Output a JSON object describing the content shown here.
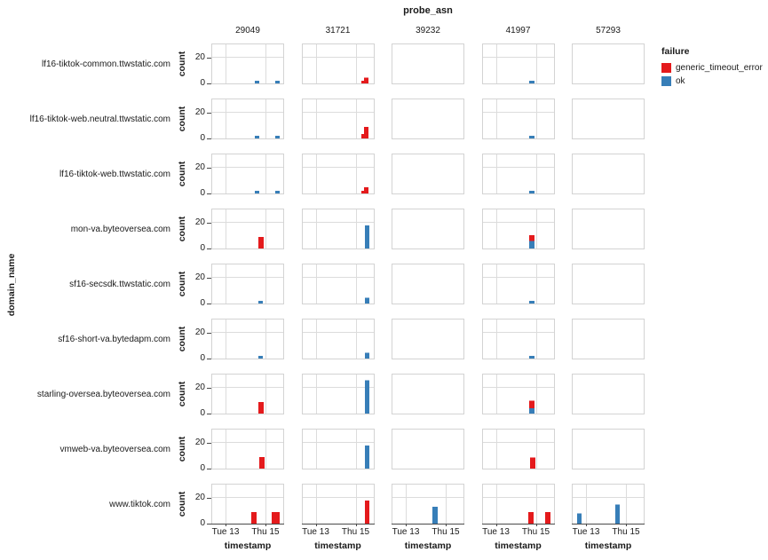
{
  "title": "probe_asn",
  "axes": {
    "row_title": "domain_name",
    "x_title": "timestamp",
    "y_title": "count",
    "y_ticks": [
      "20",
      "0"
    ],
    "x_ticks": [
      "Tue 13",
      "Thu 15"
    ]
  },
  "legend": {
    "title": "failure",
    "items": [
      {
        "label": "generic_timeout_error",
        "color": "#e41a1c"
      },
      {
        "label": "ok",
        "color": "#377eb8"
      }
    ]
  },
  "chart_data": {
    "type": "bar",
    "title": "probe_asn",
    "xlabel": "timestamp",
    "ylabel": "count",
    "facet_columns": [
      "29049",
      "31721",
      "39232",
      "41997",
      "57293"
    ],
    "facet_rows": [
      "lf16-tiktok-common.ttwstatic.com",
      "lf16-tiktok-web.neutral.ttwstatic.com",
      "lf16-tiktok-web.ttwstatic.com",
      "mon-va.byteoversea.com",
      "sf16-secsdk.ttwstatic.com",
      "sf16-short-va.bytedapm.com",
      "starling-oversea.byteoversea.com",
      "vmweb-va.byteoversea.com",
      "www.tiktok.com"
    ],
    "ylim": [
      0,
      30
    ],
    "y_gridline": 20,
    "x_tick_positions": [
      0.1875,
      0.7563
    ],
    "series_colors": {
      "generic_timeout_error": "#e41a1c",
      "ok": "#377eb8"
    },
    "panels": [
      {
        "r": 0,
        "c": 0,
        "grid": true,
        "bars": [
          {
            "x": 0.597,
            "w": 0.068,
            "stack": [
              {
                "failure": "ok",
                "count": 2
              }
            ]
          },
          {
            "x": 0.8875,
            "w": 0.0625,
            "stack": [
              {
                "failure": "ok",
                "count": 2
              }
            ]
          }
        ]
      },
      {
        "r": 0,
        "c": 1,
        "grid": true,
        "bars": [
          {
            "x": 0.82,
            "w": 0.042,
            "stack": [
              {
                "failure": "generic_timeout_error",
                "count": 2
              }
            ]
          },
          {
            "x": 0.862,
            "w": 0.062,
            "stack": [
              {
                "failure": "generic_timeout_error",
                "count": 4.5
              }
            ]
          }
        ]
      },
      {
        "r": 0,
        "c": 2,
        "grid": false,
        "bars": []
      },
      {
        "r": 0,
        "c": 3,
        "grid": true,
        "bars": [
          {
            "x": 0.655,
            "w": 0.07,
            "stack": [
              {
                "failure": "ok",
                "count": 2
              }
            ]
          }
        ]
      },
      {
        "r": 0,
        "c": 4,
        "grid": false,
        "bars": []
      },
      {
        "r": 1,
        "c": 0,
        "grid": true,
        "bars": [
          {
            "x": 0.597,
            "w": 0.068,
            "stack": [
              {
                "failure": "ok",
                "count": 2
              }
            ]
          },
          {
            "x": 0.8875,
            "w": 0.0625,
            "stack": [
              {
                "failure": "ok",
                "count": 2
              }
            ]
          }
        ]
      },
      {
        "r": 1,
        "c": 1,
        "grid": true,
        "bars": [
          {
            "x": 0.82,
            "w": 0.042,
            "stack": [
              {
                "failure": "generic_timeout_error",
                "count": 3.5
              }
            ]
          },
          {
            "x": 0.862,
            "w": 0.062,
            "stack": [
              {
                "failure": "generic_timeout_error",
                "count": 9
              }
            ]
          }
        ]
      },
      {
        "r": 1,
        "c": 2,
        "grid": false,
        "bars": []
      },
      {
        "r": 1,
        "c": 3,
        "grid": true,
        "bars": [
          {
            "x": 0.655,
            "w": 0.07,
            "stack": [
              {
                "failure": "ok",
                "count": 2
              }
            ]
          }
        ]
      },
      {
        "r": 1,
        "c": 4,
        "grid": false,
        "bars": []
      },
      {
        "r": 2,
        "c": 0,
        "grid": true,
        "bars": [
          {
            "x": 0.597,
            "w": 0.068,
            "stack": [
              {
                "failure": "ok",
                "count": 2
              }
            ]
          },
          {
            "x": 0.8875,
            "w": 0.0625,
            "stack": [
              {
                "failure": "ok",
                "count": 2
              }
            ]
          }
        ]
      },
      {
        "r": 2,
        "c": 1,
        "grid": true,
        "bars": [
          {
            "x": 0.82,
            "w": 0.042,
            "stack": [
              {
                "failure": "generic_timeout_error",
                "count": 2
              }
            ]
          },
          {
            "x": 0.862,
            "w": 0.062,
            "stack": [
              {
                "failure": "generic_timeout_error",
                "count": 5
              }
            ]
          }
        ]
      },
      {
        "r": 2,
        "c": 2,
        "grid": false,
        "bars": []
      },
      {
        "r": 2,
        "c": 3,
        "grid": true,
        "bars": [
          {
            "x": 0.655,
            "w": 0.07,
            "stack": [
              {
                "failure": "ok",
                "count": 2
              }
            ]
          }
        ]
      },
      {
        "r": 2,
        "c": 4,
        "grid": false,
        "bars": []
      },
      {
        "r": 3,
        "c": 0,
        "grid": true,
        "bars": [
          {
            "x": 0.645,
            "w": 0.072,
            "stack": [
              {
                "failure": "generic_timeout_error",
                "count": 9
              }
            ]
          }
        ]
      },
      {
        "r": 3,
        "c": 1,
        "grid": true,
        "bars": [
          {
            "x": 0.87,
            "w": 0.068,
            "stack": [
              {
                "failure": "ok",
                "count": 18
              }
            ]
          }
        ]
      },
      {
        "r": 3,
        "c": 2,
        "grid": false,
        "bars": []
      },
      {
        "r": 3,
        "c": 3,
        "grid": true,
        "bars": [
          {
            "x": 0.65,
            "w": 0.072,
            "stack": [
              {
                "failure": "ok",
                "count": 6
              },
              {
                "failure": "generic_timeout_error",
                "count": 4.5
              }
            ]
          }
        ]
      },
      {
        "r": 3,
        "c": 4,
        "grid": false,
        "bars": []
      },
      {
        "r": 4,
        "c": 0,
        "grid": true,
        "bars": [
          {
            "x": 0.655,
            "w": 0.065,
            "stack": [
              {
                "failure": "ok",
                "count": 2
              }
            ]
          }
        ]
      },
      {
        "r": 4,
        "c": 1,
        "grid": true,
        "bars": [
          {
            "x": 0.87,
            "w": 0.068,
            "stack": [
              {
                "failure": "ok",
                "count": 4.5
              }
            ]
          }
        ]
      },
      {
        "r": 4,
        "c": 2,
        "grid": false,
        "bars": []
      },
      {
        "r": 4,
        "c": 3,
        "grid": true,
        "bars": [
          {
            "x": 0.655,
            "w": 0.07,
            "stack": [
              {
                "failure": "ok",
                "count": 2
              }
            ]
          }
        ]
      },
      {
        "r": 4,
        "c": 4,
        "grid": false,
        "bars": []
      },
      {
        "r": 5,
        "c": 0,
        "grid": true,
        "bars": [
          {
            "x": 0.655,
            "w": 0.065,
            "stack": [
              {
                "failure": "ok",
                "count": 2
              }
            ]
          }
        ]
      },
      {
        "r": 5,
        "c": 1,
        "grid": true,
        "bars": [
          {
            "x": 0.87,
            "w": 0.068,
            "stack": [
              {
                "failure": "ok",
                "count": 4.5
              }
            ]
          }
        ]
      },
      {
        "r": 5,
        "c": 2,
        "grid": false,
        "bars": []
      },
      {
        "r": 5,
        "c": 3,
        "grid": true,
        "bars": [
          {
            "x": 0.655,
            "w": 0.07,
            "stack": [
              {
                "failure": "ok",
                "count": 2
              }
            ]
          }
        ]
      },
      {
        "r": 5,
        "c": 4,
        "grid": false,
        "bars": []
      },
      {
        "r": 6,
        "c": 0,
        "grid": true,
        "bars": [
          {
            "x": 0.655,
            "w": 0.072,
            "stack": [
              {
                "failure": "generic_timeout_error",
                "count": 9
              }
            ]
          }
        ]
      },
      {
        "r": 6,
        "c": 1,
        "grid": true,
        "bars": [
          {
            "x": 0.87,
            "w": 0.068,
            "stack": [
              {
                "failure": "ok",
                "count": 26
              }
            ]
          }
        ]
      },
      {
        "r": 6,
        "c": 2,
        "grid": false,
        "bars": []
      },
      {
        "r": 6,
        "c": 3,
        "grid": true,
        "bars": [
          {
            "x": 0.65,
            "w": 0.072,
            "stack": [
              {
                "failure": "ok",
                "count": 4
              },
              {
                "failure": "generic_timeout_error",
                "count": 6
              }
            ]
          }
        ]
      },
      {
        "r": 6,
        "c": 4,
        "grid": false,
        "bars": []
      },
      {
        "r": 7,
        "c": 0,
        "grid": true,
        "bars": [
          {
            "x": 0.665,
            "w": 0.072,
            "stack": [
              {
                "failure": "generic_timeout_error",
                "count": 9
              }
            ]
          }
        ]
      },
      {
        "r": 7,
        "c": 1,
        "grid": true,
        "bars": [
          {
            "x": 0.87,
            "w": 0.068,
            "stack": [
              {
                "failure": "ok",
                "count": 18
              }
            ]
          }
        ]
      },
      {
        "r": 7,
        "c": 2,
        "grid": false,
        "bars": []
      },
      {
        "r": 7,
        "c": 3,
        "grid": true,
        "bars": [
          {
            "x": 0.665,
            "w": 0.07,
            "stack": [
              {
                "failure": "generic_timeout_error",
                "count": 8.5
              }
            ]
          }
        ]
      },
      {
        "r": 7,
        "c": 4,
        "grid": false,
        "bars": []
      },
      {
        "r": 8,
        "c": 0,
        "grid": true,
        "bars": [
          {
            "x": 0.554,
            "w": 0.075,
            "stack": [
              {
                "failure": "generic_timeout_error",
                "count": 9
              }
            ]
          },
          {
            "x": 0.84,
            "w": 0.113,
            "stack": [
              {
                "failure": "generic_timeout_error",
                "count": 9
              }
            ]
          }
        ]
      },
      {
        "r": 8,
        "c": 1,
        "grid": true,
        "bars": [
          {
            "x": 0.87,
            "w": 0.068,
            "stack": [
              {
                "failure": "generic_timeout_error",
                "count": 18
              }
            ]
          }
        ]
      },
      {
        "r": 8,
        "c": 2,
        "grid": true,
        "bars": [
          {
            "x": 0.565,
            "w": 0.072,
            "stack": [
              {
                "failure": "ok",
                "count": 13
              }
            ]
          }
        ]
      },
      {
        "r": 8,
        "c": 3,
        "grid": true,
        "bars": [
          {
            "x": 0.635,
            "w": 0.07,
            "stack": [
              {
                "failure": "generic_timeout_error",
                "count": 9
              }
            ]
          },
          {
            "x": 0.88,
            "w": 0.07,
            "stack": [
              {
                "failure": "generic_timeout_error",
                "count": 9
              }
            ]
          }
        ]
      },
      {
        "r": 8,
        "c": 4,
        "grid": true,
        "bars": [
          {
            "x": 0.058,
            "w": 0.062,
            "stack": [
              {
                "failure": "ok",
                "count": 8
              }
            ]
          },
          {
            "x": 0.6,
            "w": 0.068,
            "stack": [
              {
                "failure": "ok",
                "count": 15
              }
            ]
          }
        ]
      }
    ]
  }
}
